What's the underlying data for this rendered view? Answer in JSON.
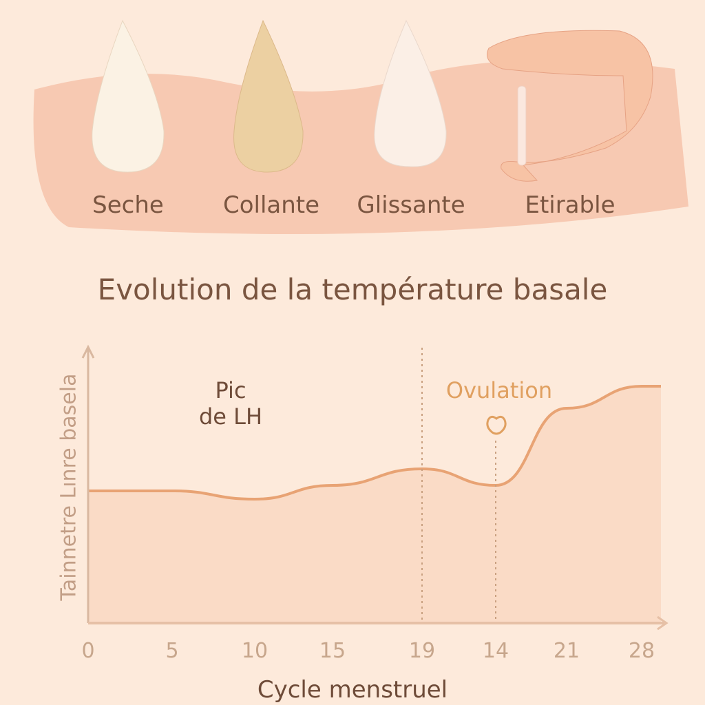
{
  "illustration": {
    "mucus_types": [
      {
        "label": "Seche",
        "color": "#fbf2e4"
      },
      {
        "label": "Collante",
        "color": "#ecd0a2"
      },
      {
        "label": "Glissante",
        "color": "#fbefe6"
      },
      {
        "label": "Etirable",
        "color": "#f9d9c5"
      }
    ]
  },
  "colors": {
    "background": "#fdeadb",
    "band": "#f7c9b2",
    "line": "#e8a374",
    "fill": "#f9d7c1",
    "text": "#7a5540",
    "ovulation": "#e0a060"
  },
  "chart_data": {
    "type": "area",
    "title": "Evolution de la température basale",
    "xlabel": "Cycle menstruel",
    "ylabel": "Tainnetre Lınre basela",
    "categories": [
      "0",
      "5",
      "10",
      "15",
      "19",
      "14",
      "21",
      "28"
    ],
    "values": [
      48,
      48,
      45,
      50,
      56,
      50,
      78,
      86
    ],
    "ylim": [
      0,
      100
    ],
    "grid": false,
    "annotations": [
      {
        "text_line1": "Pic",
        "text_line2": "de LH",
        "at": "19"
      },
      {
        "text": "Ovulation",
        "at": "14",
        "icon": "egg-icon"
      }
    ]
  }
}
